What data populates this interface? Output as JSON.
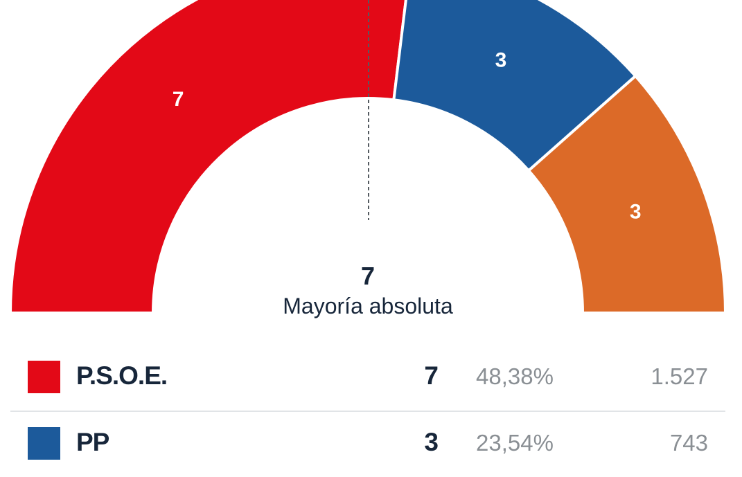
{
  "chart_data": {
    "type": "pie",
    "subtype": "half-donut",
    "majority": {
      "value": "7",
      "label": "Mayoría absoluta"
    },
    "series": [
      {
        "name": "P.S.O.E.",
        "seats": 7,
        "color": "#e30917"
      },
      {
        "name": "PP",
        "seats": 3,
        "color": "#1c5a9b"
      },
      {
        "name": "",
        "seats": 3,
        "color": "#dc6a28"
      }
    ]
  },
  "legend": [
    {
      "name": "P.S.O.E.",
      "seats": "7",
      "percent": "48,38%",
      "votes": "1.527",
      "color": "#e30917"
    },
    {
      "name": "PP",
      "seats": "3",
      "percent": "23,54%",
      "votes": "743",
      "color": "#1c5a9b"
    }
  ]
}
